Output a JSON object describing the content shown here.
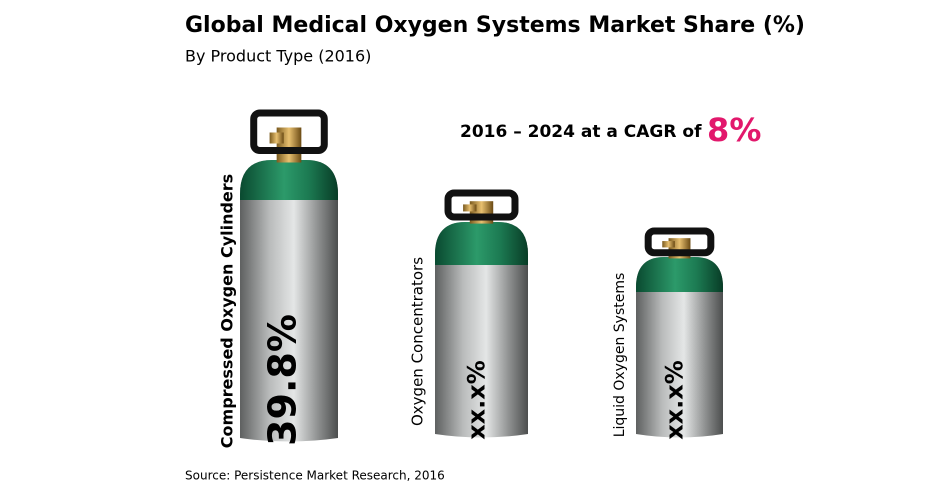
{
  "title": "Global Medical Oxygen Systems Market Share (%)",
  "subtitle": "By Product Type (2016)",
  "cagr": {
    "text": "2016 – 2024 at a CAGR of",
    "value": "8%"
  },
  "segments": [
    {
      "label": "Compressed Oxygen Cylinders",
      "value": "39.8%"
    },
    {
      "label": "Oxygen Concentrators",
      "value": "xx.x%"
    },
    {
      "label": "Liquid Oxygen Systems",
      "value": "xx.x%"
    }
  ],
  "source": "Source: Persistence Market Research, 2016"
}
